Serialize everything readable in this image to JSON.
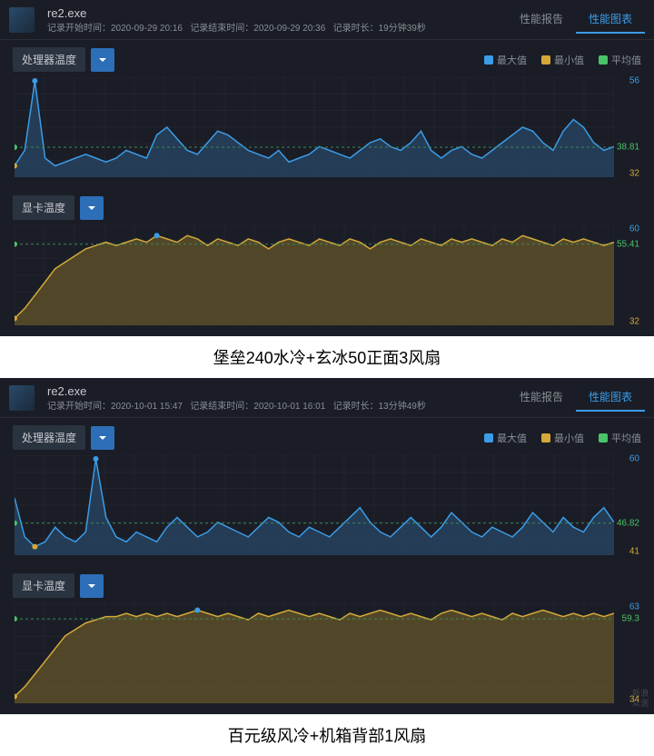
{
  "colors": {
    "max": "#3b9ce8",
    "min": "#d4a93a",
    "avg": "#4ac46a",
    "grid": "#2a2d36",
    "bg": "#1a1d26",
    "avgline": "#3a8a5a"
  },
  "legend": {
    "max": "最大值",
    "min": "最小值",
    "avg": "平均值"
  },
  "tabs": {
    "report": "性能报告",
    "chart": "性能图表"
  },
  "labels": {
    "cpu": "处理器温度",
    "gpu": "显卡温度",
    "start": "记录开始时间：",
    "end": "记录结束时间：",
    "dur": "记录时长："
  },
  "panels": [
    {
      "exe": "re2.exe",
      "start": "2020-09-29 20:16",
      "end": "2020-09-29 20:36",
      "dur": "19分钟39秒",
      "caption": "堡垒240水冷+玄冰50正面3风扇",
      "charts": [
        {
          "key": "cpu",
          "max": 56,
          "min": 32,
          "avg": 38.81,
          "ylabels": [
            {
              "v": 56,
              "c": "#3b9ce8"
            },
            {
              "v": 38.81,
              "c": "#4ac46a"
            },
            {
              "v": 32,
              "c": "#d4a93a"
            }
          ],
          "data": [
            34,
            38,
            56,
            36,
            34,
            35,
            36,
            37,
            36,
            35,
            36,
            38,
            37,
            36,
            42,
            44,
            41,
            38,
            37,
            40,
            43,
            42,
            40,
            38,
            37,
            36,
            38,
            35,
            36,
            37,
            39,
            38,
            37,
            36,
            38,
            40,
            41,
            39,
            38,
            40,
            43,
            38,
            36,
            38,
            39,
            37,
            36,
            38,
            40,
            42,
            44,
            43,
            40,
            38,
            43,
            46,
            44,
            40,
            38,
            39
          ],
          "fill": "#2a4a6a",
          "stroke": "#3b9ce8"
        },
        {
          "key": "gpu",
          "max": 60,
          "min": 32,
          "avg": 55.41,
          "ylabels": [
            {
              "v": 60,
              "c": "#3b9ce8"
            },
            {
              "v": 55.41,
              "c": "#4ac46a"
            },
            {
              "v": 32,
              "c": "#d4a93a"
            }
          ],
          "data": [
            33,
            36,
            40,
            44,
            48,
            50,
            52,
            54,
            55,
            56,
            55,
            56,
            57,
            56,
            58,
            57,
            56,
            58,
            57,
            55,
            57,
            56,
            55,
            57,
            56,
            54,
            56,
            57,
            56,
            55,
            57,
            56,
            55,
            57,
            56,
            54,
            56,
            57,
            56,
            55,
            57,
            56,
            55,
            57,
            56,
            57,
            56,
            55,
            57,
            56,
            58,
            57,
            56,
            55,
            57,
            56,
            57,
            56,
            55,
            56
          ],
          "fill": "#6a5a2a",
          "stroke": "#d4a93a"
        }
      ]
    },
    {
      "exe": "re2.exe",
      "start": "2020-10-01 15:47",
      "end": "2020-10-01 16:01",
      "dur": "13分钟49秒",
      "caption": "百元级风冷+机箱背部1风扇",
      "charts": [
        {
          "key": "cpu",
          "max": 60,
          "min": 41,
          "avg": 46.82,
          "ylabels": [
            {
              "v": 60,
              "c": "#3b9ce8"
            },
            {
              "v": 46.82,
              "c": "#4ac46a"
            },
            {
              "v": 41,
              "c": "#d4a93a"
            }
          ],
          "data": [
            52,
            44,
            42,
            43,
            46,
            44,
            43,
            45,
            60,
            48,
            44,
            43,
            45,
            44,
            43,
            46,
            48,
            46,
            44,
            45,
            47,
            46,
            45,
            44,
            46,
            48,
            47,
            45,
            44,
            46,
            45,
            44,
            46,
            48,
            50,
            47,
            45,
            44,
            46,
            48,
            46,
            44,
            46,
            49,
            47,
            45,
            44,
            46,
            45,
            44,
            46,
            49,
            47,
            45,
            48,
            46,
            45,
            48,
            50,
            47
          ],
          "fill": "#2a4a6a",
          "stroke": "#3b9ce8"
        },
        {
          "key": "gpu",
          "max": 63,
          "min": 34,
          "avg": 59.3,
          "ylabels": [
            {
              "v": 63,
              "c": "#3b9ce8"
            },
            {
              "v": 59.3,
              "c": "#4ac46a"
            },
            {
              "v": 34,
              "c": "#d4a93a"
            }
          ],
          "data": [
            35,
            38,
            42,
            46,
            50,
            54,
            56,
            58,
            59,
            60,
            60,
            61,
            60,
            61,
            60,
            61,
            60,
            61,
            62,
            61,
            60,
            61,
            60,
            59,
            61,
            60,
            61,
            62,
            61,
            60,
            61,
            60,
            59,
            61,
            60,
            61,
            62,
            61,
            60,
            61,
            60,
            59,
            61,
            62,
            61,
            60,
            61,
            60,
            59,
            61,
            60,
            61,
            62,
            61,
            60,
            61,
            60,
            61,
            60,
            61
          ],
          "fill": "#6a5a2a",
          "stroke": "#d4a93a"
        }
      ]
    }
  ],
  "watermark": "新浪\n众测"
}
